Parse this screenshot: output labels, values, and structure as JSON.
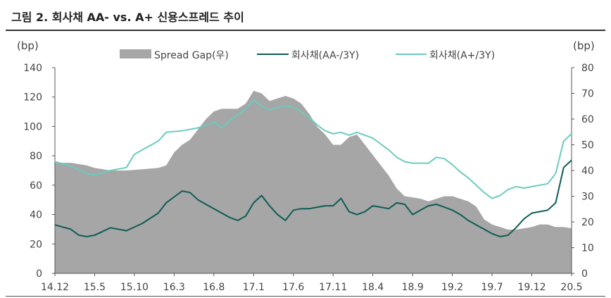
{
  "figure": {
    "title": "그림 2. 회사채 AA- vs. A+ 신용스프레드 추이"
  },
  "colors": {
    "gap": "#a6a6a6",
    "aa": "#0d5c55",
    "a": "#6ccbbf",
    "axis": "#555555"
  },
  "chart_data": {
    "type": "line",
    "left_unit": "(bp)",
    "right_unit": "(bp)",
    "y_left": {
      "min": 0,
      "max": 140,
      "ticks": [
        0,
        20,
        40,
        60,
        80,
        100,
        120,
        140
      ]
    },
    "y_right": {
      "min": 0,
      "max": 80,
      "ticks": [
        0,
        10,
        20,
        30,
        40,
        50,
        60,
        70,
        80
      ]
    },
    "x_tick_labels": [
      "14.12",
      "15.5",
      "15.10",
      "16.3",
      "16.8",
      "17.1",
      "17.6",
      "17.11",
      "18.4",
      "18.9",
      "19.2",
      "19.7",
      "19.12",
      "20.5"
    ],
    "x_range": [
      "2014-12",
      "2020-05"
    ],
    "grid": false,
    "legend_position": "top",
    "series": [
      {
        "name": "Spread Gap(우)",
        "kind": "area",
        "axis": "right",
        "points": [
          [
            "2014-12",
            43
          ],
          [
            "2015-02",
            43
          ],
          [
            "2015-04",
            42
          ],
          [
            "2015-05",
            41
          ],
          [
            "2015-07",
            40
          ],
          [
            "2015-09",
            40
          ],
          [
            "2015-11",
            40.5
          ],
          [
            "2016-01",
            41
          ],
          [
            "2016-02",
            42
          ],
          [
            "2016-03",
            47
          ],
          [
            "2016-04",
            50
          ],
          [
            "2016-05",
            52
          ],
          [
            "2016-06",
            56
          ],
          [
            "2016-07",
            60
          ],
          [
            "2016-08",
            63
          ],
          [
            "2016-09",
            64
          ],
          [
            "2016-10",
            64
          ],
          [
            "2016-11",
            64
          ],
          [
            "2016-12",
            66
          ],
          [
            "2017-01",
            71
          ],
          [
            "2017-02",
            70
          ],
          [
            "2017-03",
            67
          ],
          [
            "2017-04",
            68
          ],
          [
            "2017-05",
            69
          ],
          [
            "2017-06",
            68
          ],
          [
            "2017-07",
            66
          ],
          [
            "2017-08",
            62
          ],
          [
            "2017-09",
            57
          ],
          [
            "2017-10",
            54
          ],
          [
            "2017-11",
            50
          ],
          [
            "2017-12",
            50
          ],
          [
            "2018-01",
            53
          ],
          [
            "2018-02",
            54
          ],
          [
            "2018-03",
            50
          ],
          [
            "2018-04",
            46
          ],
          [
            "2018-05",
            42
          ],
          [
            "2018-06",
            38
          ],
          [
            "2018-07",
            33
          ],
          [
            "2018-08",
            30
          ],
          [
            "2018-09",
            29.5
          ],
          [
            "2018-10",
            29
          ],
          [
            "2018-11",
            28
          ],
          [
            "2018-12",
            29
          ],
          [
            "2019-01",
            30
          ],
          [
            "2019-02",
            30
          ],
          [
            "2019-03",
            29
          ],
          [
            "2019-04",
            28
          ],
          [
            "2019-05",
            26
          ],
          [
            "2019-06",
            21
          ],
          [
            "2019-07",
            19
          ],
          [
            "2019-08",
            18
          ],
          [
            "2019-09",
            17
          ],
          [
            "2019-10",
            17
          ],
          [
            "2019-11",
            17.5
          ],
          [
            "2019-12",
            18
          ],
          [
            "2020-01",
            19
          ],
          [
            "2020-02",
            19
          ],
          [
            "2020-03",
            18
          ],
          [
            "2020-04",
            18
          ],
          [
            "2020-05",
            17.5
          ]
        ]
      },
      {
        "name": "회사채(AA-/3Y)",
        "kind": "line",
        "axis": "left",
        "points": [
          [
            "2014-12",
            33
          ],
          [
            "2015-02",
            30
          ],
          [
            "2015-03",
            26
          ],
          [
            "2015-04",
            25
          ],
          [
            "2015-05",
            26
          ],
          [
            "2015-07",
            31
          ],
          [
            "2015-09",
            29
          ],
          [
            "2015-11",
            34
          ],
          [
            "2016-01",
            41
          ],
          [
            "2016-02",
            48
          ],
          [
            "2016-03",
            52
          ],
          [
            "2016-04",
            56
          ],
          [
            "2016-05",
            55
          ],
          [
            "2016-06",
            50
          ],
          [
            "2016-07",
            47
          ],
          [
            "2016-08",
            44
          ],
          [
            "2016-09",
            41
          ],
          [
            "2016-10",
            38
          ],
          [
            "2016-11",
            36
          ],
          [
            "2016-12",
            39
          ],
          [
            "2017-01",
            48
          ],
          [
            "2017-02",
            53
          ],
          [
            "2017-03",
            46
          ],
          [
            "2017-04",
            40
          ],
          [
            "2017-05",
            36
          ],
          [
            "2017-06",
            43
          ],
          [
            "2017-07",
            44
          ],
          [
            "2017-08",
            44
          ],
          [
            "2017-09",
            45
          ],
          [
            "2017-10",
            46
          ],
          [
            "2017-11",
            46
          ],
          [
            "2017-12",
            51
          ],
          [
            "2018-01",
            42
          ],
          [
            "2018-02",
            40
          ],
          [
            "2018-03",
            42
          ],
          [
            "2018-04",
            46
          ],
          [
            "2018-05",
            45
          ],
          [
            "2018-06",
            44
          ],
          [
            "2018-07",
            48
          ],
          [
            "2018-08",
            47
          ],
          [
            "2018-09",
            40
          ],
          [
            "2018-10",
            43
          ],
          [
            "2018-11",
            46
          ],
          [
            "2018-12",
            47
          ],
          [
            "2019-01",
            45
          ],
          [
            "2019-02",
            43
          ],
          [
            "2019-03",
            40
          ],
          [
            "2019-04",
            36
          ],
          [
            "2019-05",
            33
          ],
          [
            "2019-06",
            30
          ],
          [
            "2019-07",
            27
          ],
          [
            "2019-08",
            25
          ],
          [
            "2019-09",
            26
          ],
          [
            "2019-10",
            31
          ],
          [
            "2019-11",
            37
          ],
          [
            "2019-12",
            41
          ],
          [
            "2020-01",
            42
          ],
          [
            "2020-02",
            43
          ],
          [
            "2020-03",
            48
          ],
          [
            "2020-04",
            72
          ],
          [
            "2020-05",
            77
          ]
        ]
      },
      {
        "name": "회사채(A+/3Y)",
        "kind": "line",
        "axis": "left",
        "points": [
          [
            "2014-12",
            76
          ],
          [
            "2015-02",
            73
          ],
          [
            "2015-04",
            68
          ],
          [
            "2015-05",
            67
          ],
          [
            "2015-07",
            70
          ],
          [
            "2015-09",
            72
          ],
          [
            "2015-10",
            81
          ],
          [
            "2015-11",
            84
          ],
          [
            "2016-01",
            90
          ],
          [
            "2016-02",
            96
          ],
          [
            "2016-04",
            97
          ],
          [
            "2016-06",
            99
          ],
          [
            "2016-08",
            103
          ],
          [
            "2016-09",
            99
          ],
          [
            "2016-10",
            104
          ],
          [
            "2016-11",
            108
          ],
          [
            "2016-12",
            112
          ],
          [
            "2017-01",
            118
          ],
          [
            "2017-02",
            114
          ],
          [
            "2017-03",
            111
          ],
          [
            "2017-04",
            113
          ],
          [
            "2017-05",
            114
          ],
          [
            "2017-06",
            113
          ],
          [
            "2017-07",
            110
          ],
          [
            "2017-08",
            106
          ],
          [
            "2017-09",
            101
          ],
          [
            "2017-10",
            97
          ],
          [
            "2017-11",
            95
          ],
          [
            "2017-12",
            96
          ],
          [
            "2018-01",
            94
          ],
          [
            "2018-02",
            96
          ],
          [
            "2018-03",
            94
          ],
          [
            "2018-04",
            92
          ],
          [
            "2018-05",
            88
          ],
          [
            "2018-06",
            84
          ],
          [
            "2018-07",
            79
          ],
          [
            "2018-08",
            76
          ],
          [
            "2018-09",
            75
          ],
          [
            "2018-10",
            75
          ],
          [
            "2018-11",
            75
          ],
          [
            "2018-12",
            79
          ],
          [
            "2019-01",
            78
          ],
          [
            "2019-02",
            74
          ],
          [
            "2019-03",
            69
          ],
          [
            "2019-04",
            65
          ],
          [
            "2019-05",
            60
          ],
          [
            "2019-06",
            55
          ],
          [
            "2019-07",
            51
          ],
          [
            "2019-08",
            53
          ],
          [
            "2019-09",
            57
          ],
          [
            "2019-10",
            59
          ],
          [
            "2019-11",
            58
          ],
          [
            "2019-12",
            59
          ],
          [
            "2020-01",
            60
          ],
          [
            "2020-02",
            61
          ],
          [
            "2020-03",
            68
          ],
          [
            "2020-04",
            90
          ],
          [
            "2020-05",
            95
          ]
        ]
      }
    ]
  }
}
